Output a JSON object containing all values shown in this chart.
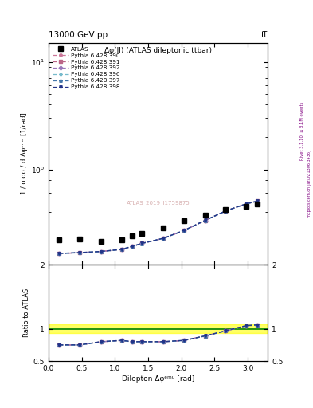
{
  "title_top": "13000 GeV pp",
  "title_right": "tt̅",
  "plot_title": "Δφ(ll) (ATLAS dileptonic ttbar)",
  "watermark": "ATLAS_2019_I1759875",
  "xlabel": "Dilepton Δφᵉᵐᵘ [rad]",
  "ylabel_main": "1 / σ dσ / d Δφᵉᵐᵘ [1/rad]",
  "ylabel_ratio": "Ratio to ATLAS",
  "right_label": "mcplots.cern.ch [arXiv:1306.3436]",
  "right_label2": "Rivet 3.1.10, ≥ 3.1M events",
  "x_data": [
    0.16,
    0.47,
    0.79,
    1.1,
    1.26,
    1.41,
    1.73,
    2.04,
    2.36,
    2.67,
    2.98,
    3.14
  ],
  "atlas_y": [
    0.22,
    0.225,
    0.215,
    0.22,
    0.24,
    0.255,
    0.285,
    0.33,
    0.375,
    0.425,
    0.455,
    0.475
  ],
  "pythia_y": [
    0.165,
    0.168,
    0.172,
    0.18,
    0.192,
    0.205,
    0.228,
    0.27,
    0.335,
    0.41,
    0.478,
    0.505
  ],
  "ratio_y": [
    0.75,
    0.75,
    0.8,
    0.82,
    0.8,
    0.8,
    0.8,
    0.82,
    0.89,
    0.97,
    1.05,
    1.06
  ],
  "xlim": [
    0.0,
    3.3
  ],
  "ylim_main_log": [
    0.13,
    15
  ],
  "ylim_ratio": [
    0.5,
    2.0
  ],
  "color_390": "#cc7799",
  "color_391": "#bb6688",
  "color_392": "#9977bb",
  "color_396": "#77bbcc",
  "color_397": "#4477aa",
  "color_398": "#223388",
  "marker_390": "o",
  "marker_391": "s",
  "marker_392": "D",
  "marker_396": "*",
  "marker_397": "^",
  "marker_398": "v",
  "atlas_color": "black",
  "atlas_marker": "s",
  "background_color": "white",
  "yticks_ratio": [
    0.5,
    1.0,
    2.0
  ],
  "ytick_labels_ratio": [
    "0.5",
    "1",
    "2"
  ]
}
